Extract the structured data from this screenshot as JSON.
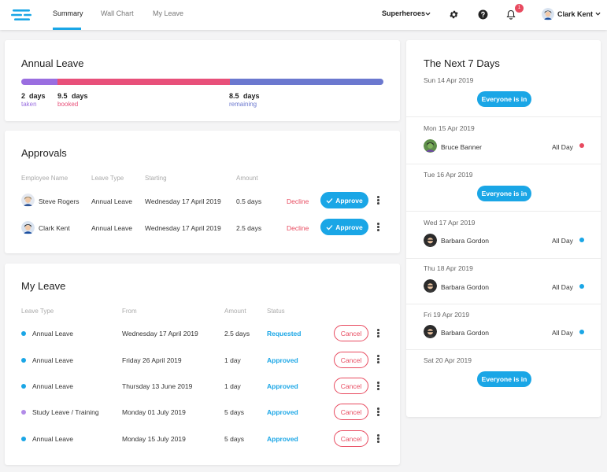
{
  "nav": {
    "tabs": [
      {
        "label": "Summary",
        "active": true
      },
      {
        "label": "Wall Chart",
        "active": false
      },
      {
        "label": "My Leave",
        "active": false
      }
    ],
    "team": "Superheroes",
    "notification_count": "1",
    "user_name": "Clark Kent"
  },
  "annual_leave": {
    "title": "Annual Leave",
    "taken": {
      "value": "2",
      "unit": "days",
      "label": "taken",
      "color": "#9a6ee0",
      "amount": 2
    },
    "booked": {
      "value": "9.5",
      "unit": "days",
      "label": "booked",
      "color": "#e8507a",
      "amount": 9.5
    },
    "remaining": {
      "value": "8.5",
      "unit": "days",
      "label": "remaining",
      "color": "#6b78cf",
      "amount": 8.5
    }
  },
  "approvals": {
    "title": "Approvals",
    "columns": [
      "Employee Name",
      "Leave Type",
      "Starting",
      "Amount"
    ],
    "rows": [
      {
        "name": "Steve Rogers",
        "type": "Annual Leave",
        "starting": "Wednesday 17 April 2019",
        "amount": "0.5 days",
        "decline": "Decline",
        "approve": "Approve"
      },
      {
        "name": "Clark Kent",
        "type": "Annual Leave",
        "starting": "Wednesday 17 April 2019",
        "amount": "2.5 days",
        "decline": "Decline",
        "approve": "Approve"
      }
    ]
  },
  "my_leave": {
    "title": "My Leave",
    "columns": [
      "Leave Type",
      "From",
      "Amount",
      "Status"
    ],
    "rows": [
      {
        "type": "Annual Leave",
        "from": "Wednesday 17 April 2019",
        "amount": "2.5 days",
        "status": "Requested",
        "color": "#1aa6e6",
        "cancel": "Cancel"
      },
      {
        "type": "Annual Leave",
        "from": "Friday 26 April 2019",
        "amount": "1 day",
        "status": "Approved",
        "color": "#1aa6e6",
        "cancel": "Cancel"
      },
      {
        "type": "Annual Leave",
        "from": "Thursday 13 June 2019",
        "amount": "1 day",
        "status": "Approved",
        "color": "#1aa6e6",
        "cancel": "Cancel"
      },
      {
        "type": "Study Leave / Training",
        "from": "Monday 01 July 2019",
        "amount": "5 days",
        "status": "Approved",
        "color": "#b28be8",
        "cancel": "Cancel"
      },
      {
        "type": "Annual Leave",
        "from": "Monday 15 July 2019",
        "amount": "5 days",
        "status": "Approved",
        "color": "#1aa6e6",
        "cancel": "Cancel"
      }
    ]
  },
  "next7": {
    "title": "The Next 7 Days",
    "days": [
      {
        "date": "Sun 14 Apr 2019",
        "everyone_in": "Everyone is in"
      },
      {
        "date": "Mon 15 Apr 2019",
        "person": "Bruce Banner",
        "period": "All Day",
        "dot_color": "#e84a5f"
      },
      {
        "date": "Tue 16 Apr 2019",
        "everyone_in": "Everyone is in"
      },
      {
        "date": "Wed 17 Apr 2019",
        "person": "Barbara Gordon",
        "period": "All Day",
        "dot_color": "#1aa6e6"
      },
      {
        "date": "Thu 18 Apr 2019",
        "person": "Barbara Gordon",
        "period": "All Day",
        "dot_color": "#1aa6e6"
      },
      {
        "date": "Fri 19 Apr 2019",
        "person": "Barbara Gordon",
        "period": "All Day",
        "dot_color": "#1aa6e6"
      },
      {
        "date": "Sat 20 Apr 2019",
        "everyone_in": "Everyone is in"
      }
    ]
  }
}
